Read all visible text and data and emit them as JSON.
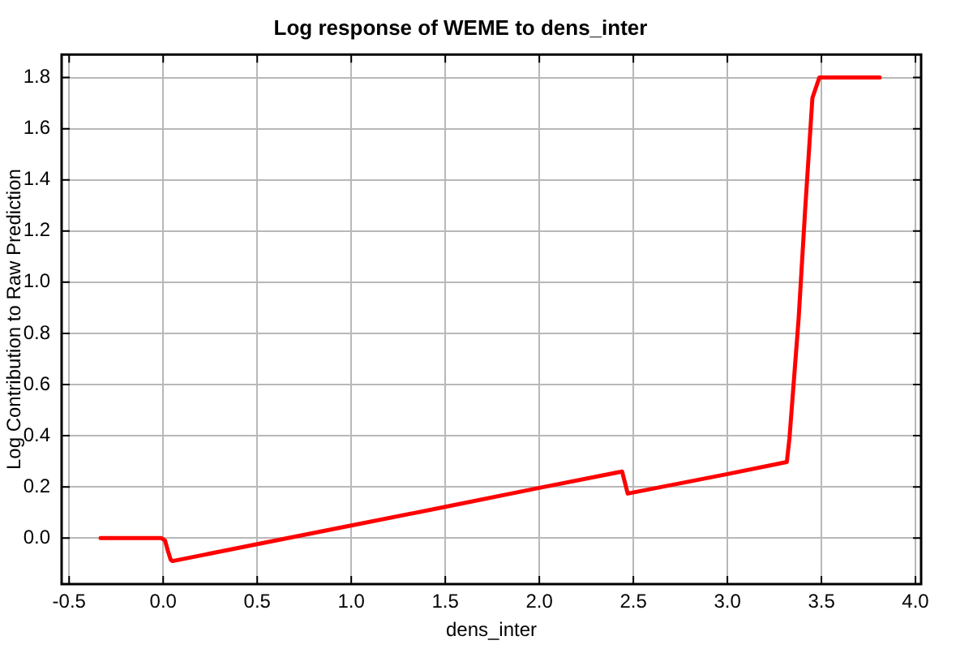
{
  "chart_data": {
    "type": "line",
    "title": "Log response of WEME to dens_inter",
    "xlabel": "dens_inter",
    "ylabel": "Log Contribution to Raw Prediction",
    "x": [
      -0.333,
      -0.01,
      0.01,
      0.025,
      0.04,
      0.05,
      0.5,
      1.0,
      1.5,
      2.0,
      2.44,
      2.47,
      3.0,
      3.316,
      3.33,
      3.379,
      3.414,
      3.452,
      3.489,
      3.81
    ],
    "series": [
      {
        "color": "#ff0000",
        "values": [
          0,
          0,
          -0.01,
          -0.05,
          -0.085,
          -0.09,
          -0.024,
          0.049,
          0.122,
          0.196,
          0.26,
          0.174,
          0.25,
          0.297,
          0.39,
          0.86,
          1.29,
          1.72,
          1.8,
          1.8
        ]
      }
    ],
    "xlim": [
      -0.54,
      4.03
    ],
    "ylim": [
      -0.18,
      1.89
    ],
    "xticks": [
      -0.5,
      {
        "value": 0,
        "label": "0.0"
      },
      0.5,
      {
        "value": 1,
        "label": "1.0"
      },
      1.5,
      {
        "value": 2,
        "label": "2.0"
      },
      2.5,
      {
        "value": 3,
        "label": "3.0"
      },
      3.5,
      {
        "value": 4,
        "label": "4.0"
      }
    ],
    "yticks": [
      {
        "value": 0,
        "label": "0.0"
      },
      0.2,
      0.4,
      0.6,
      0.8,
      {
        "value": 1,
        "label": "1.0"
      },
      1.2,
      1.4,
      1.6,
      1.8
    ],
    "grid": true,
    "line_style": "solid"
  }
}
